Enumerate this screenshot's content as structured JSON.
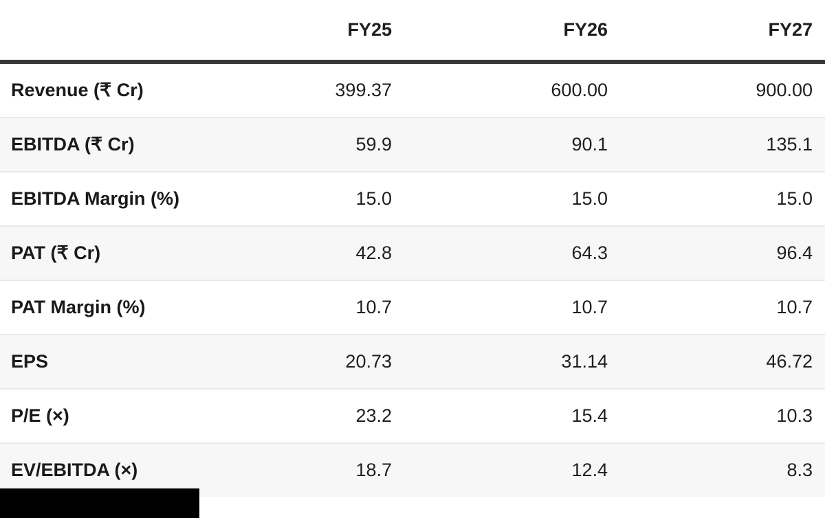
{
  "table": {
    "columns": [
      "",
      "FY25",
      "FY26",
      "FY27"
    ],
    "rows": [
      {
        "label": "Revenue (₹ Cr)",
        "values": [
          "399.37",
          "600.00",
          "900.00"
        ]
      },
      {
        "label": "EBITDA (₹ Cr)",
        "values": [
          "59.9",
          "90.1",
          "135.1"
        ]
      },
      {
        "label": "EBITDA Margin (%)",
        "values": [
          "15.0",
          "15.0",
          "15.0"
        ]
      },
      {
        "label": "PAT (₹ Cr)",
        "values": [
          "42.8",
          "64.3",
          "96.4"
        ]
      },
      {
        "label": "PAT Margin (%)",
        "values": [
          "10.7",
          "10.7",
          "10.7"
        ]
      },
      {
        "label": "EPS",
        "values": [
          "20.73",
          "31.14",
          "46.72"
        ]
      },
      {
        "label": "P/E (×)",
        "values": [
          "23.2",
          "15.4",
          "10.3"
        ]
      },
      {
        "label": "EV/EBITDA (×)",
        "values": [
          "18.7",
          "12.4",
          "8.3"
        ]
      }
    ]
  },
  "colors": {
    "header_rule": "#373737",
    "row_divider": "#e9e9e9",
    "alt_row_background": "#f7f7f7",
    "text": "#1c1c1c",
    "redaction": "#000000"
  }
}
